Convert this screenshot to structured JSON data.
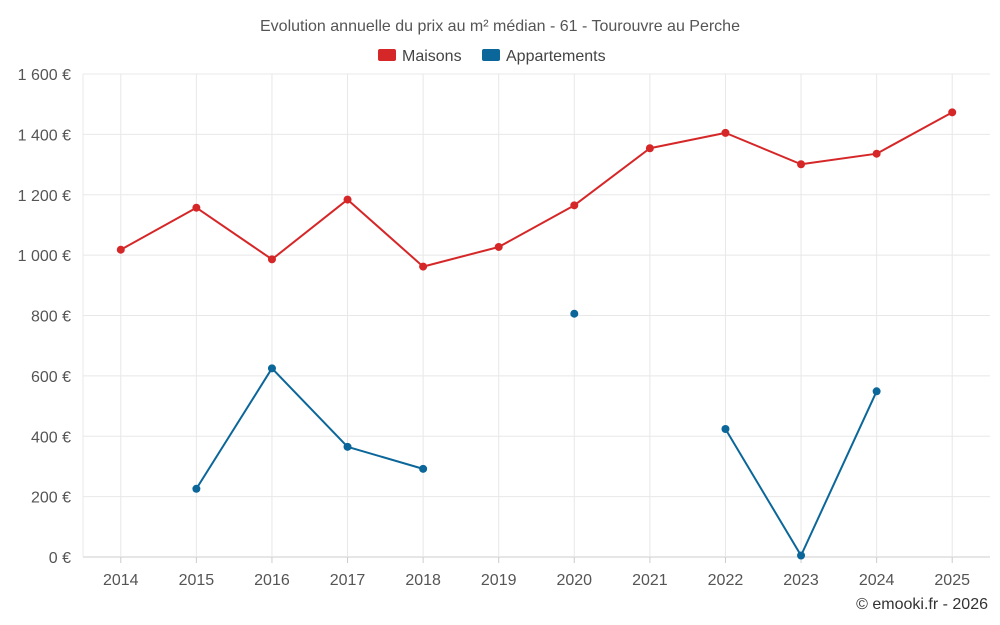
{
  "chart_data": {
    "type": "line",
    "title": "Evolution annuelle du prix au m² médian - 61 - Tourouvre au Perche",
    "categories": [
      "2014",
      "2015",
      "2016",
      "2017",
      "2018",
      "2019",
      "2020",
      "2021",
      "2022",
      "2023",
      "2024",
      "2025"
    ],
    "series": [
      {
        "name": "Maisons",
        "color": "#d62728",
        "values": [
          1018,
          1157,
          986,
          1184,
          962,
          1027,
          1165,
          1354,
          1405,
          1301,
          1336,
          1473
        ]
      },
      {
        "name": "Appartements",
        "color": "#0b6699",
        "values": [
          null,
          226,
          625,
          365,
          292,
          null,
          806,
          null,
          424,
          5,
          549,
          null
        ]
      }
    ],
    "ylim": [
      0,
      1600
    ],
    "yticks": [
      0,
      200,
      400,
      600,
      800,
      1000,
      1200,
      1400,
      1600
    ],
    "ytick_labels": [
      "0 €",
      "200 €",
      "400 €",
      "600 €",
      "800 €",
      "1 000 €",
      "1 200 €",
      "1 400 €",
      "1 600 €"
    ],
    "xlabel": "",
    "ylabel": "",
    "grid": true,
    "legend": "top-center"
  },
  "credit": "© emooki.fr - 2026"
}
